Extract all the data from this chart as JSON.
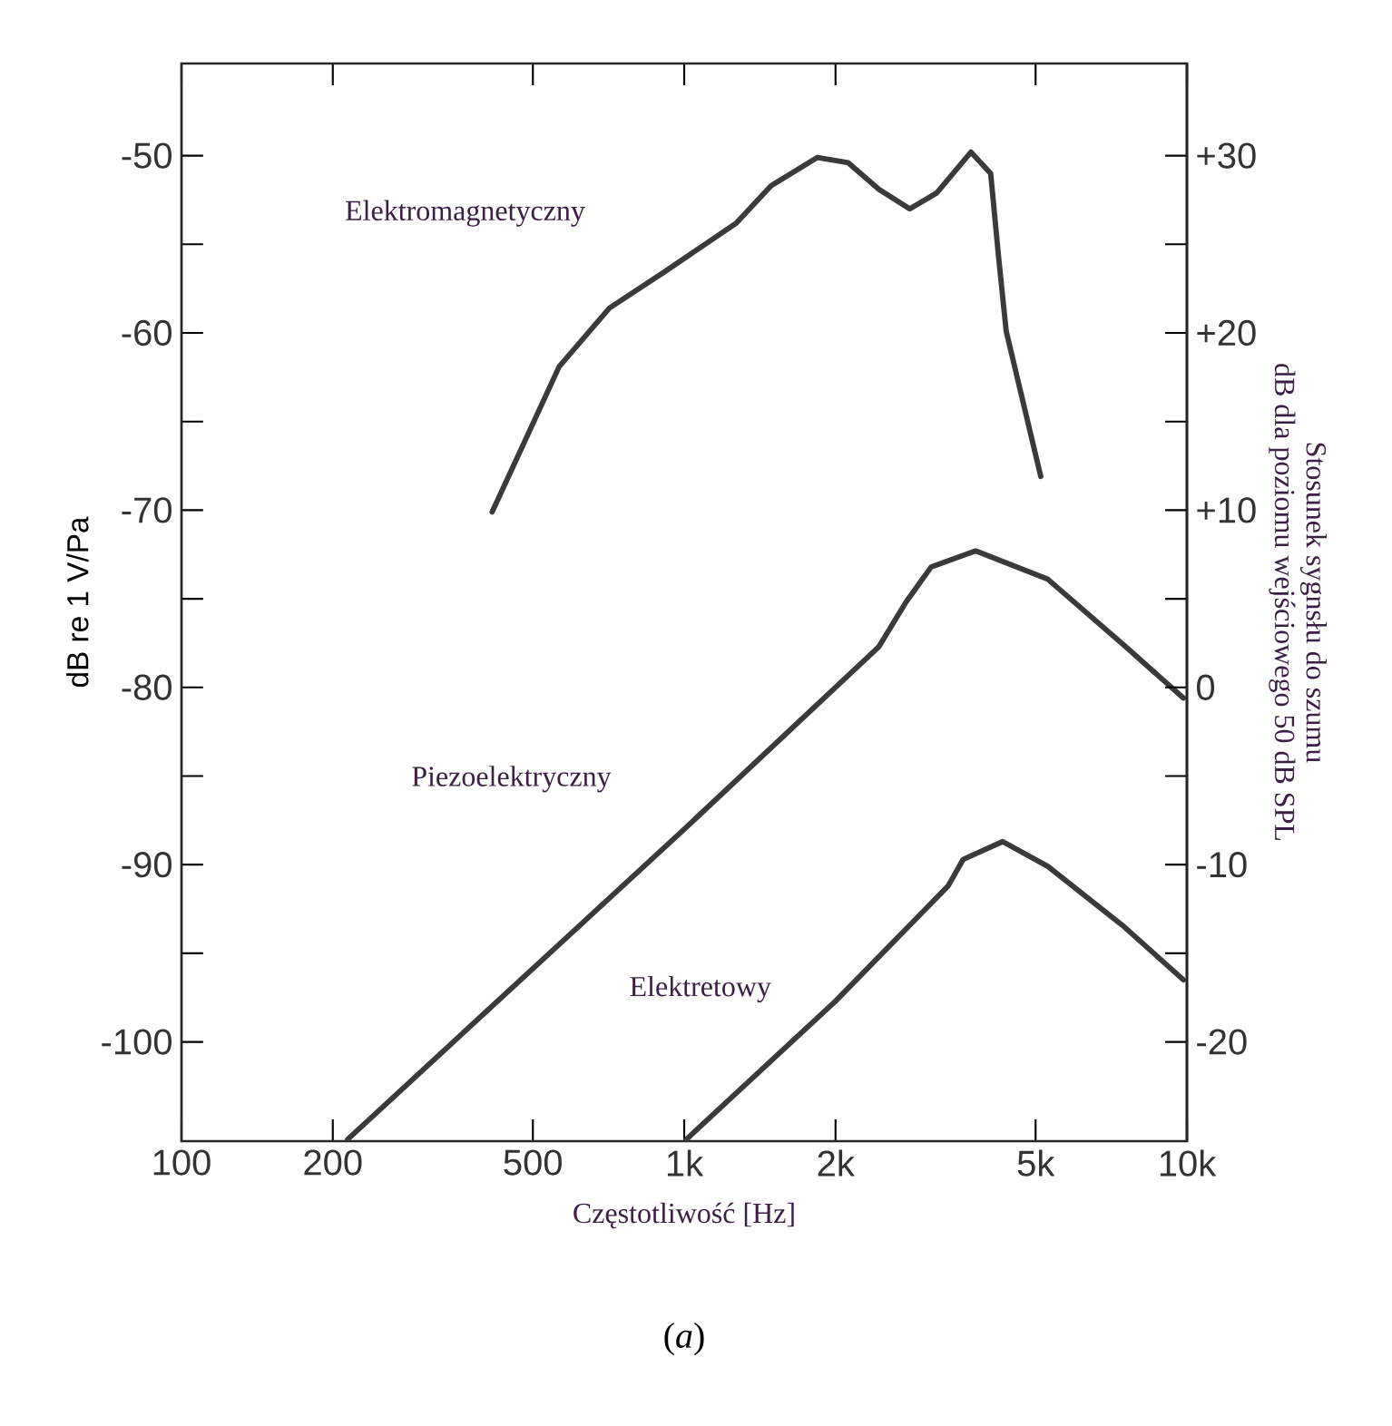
{
  "chart_data": {
    "type": "line",
    "xlabel": "Częstotliwość [Hz]",
    "ylabel": "dB re 1 V/Pa",
    "y2label": "Stosunek sygnsłu do szumu\ndB dla poziomu wejściowego 50 dB SPL",
    "log": "x",
    "grid": false,
    "legend": false,
    "marker": "none",
    "line_style": "solid",
    "xlim": [
      100,
      10000
    ],
    "ylim": [
      -105.6,
      -44.8
    ],
    "y2lim": [
      -25.6,
      35.2
    ],
    "xticks": [
      100,
      200,
      500,
      {
        "value": 1000,
        "label": "1k"
      },
      {
        "value": 2000,
        "label": "2k"
      },
      {
        "value": 5000,
        "label": "5k"
      },
      {
        "value": 10000,
        "label": "10k"
      }
    ],
    "yticks": [
      -50,
      {
        "value": -55,
        "label": null
      },
      -60,
      {
        "value": -65,
        "label": null
      },
      -70,
      {
        "value": -75,
        "label": null
      },
      -80,
      {
        "value": -85,
        "label": null
      },
      -90,
      {
        "value": -95,
        "label": null
      },
      -100
    ],
    "y2ticks": [
      {
        "value": 30,
        "label": "+30"
      },
      {
        "value": 25,
        "label": null
      },
      {
        "value": 20,
        "label": "+20"
      },
      {
        "value": 15,
        "label": null
      },
      {
        "value": 10,
        "label": "+10"
      },
      {
        "value": 5,
        "label": null
      },
      0,
      {
        "value": -5,
        "label": null
      },
      -10,
      {
        "value": -15,
        "label": null
      },
      -20
    ],
    "series": [
      {
        "name": "Elektromagnetyczny",
        "color": "#3a3a3a",
        "x": [
          415,
          564,
          710,
          909,
          1270,
          1489,
          1841,
          2120,
          2440,
          2810,
          3180,
          3720,
          4070,
          4220,
          4370,
          5120
        ],
        "values": [
          -70.1,
          -61.9,
          -58.6,
          -56.6,
          -53.8,
          -51.7,
          -50.1,
          -50.4,
          -51.9,
          -53.0,
          -52.1,
          -49.8,
          -51.0,
          -55.7,
          -59.9,
          -68.1
        ]
      },
      {
        "name": "Piezoelektryczny",
        "color": "#3a3a3a",
        "x": [
          214,
          1000,
          2440,
          2760,
          3100,
          3800,
          5290,
          7550,
          9840
        ],
        "values": [
          -105.5,
          -88.0,
          -77.7,
          -75.2,
          -73.2,
          -72.3,
          -73.9,
          -77.7,
          -80.6
        ]
      },
      {
        "name": "Elektretowy",
        "color": "#3a3a3a",
        "x": [
          1010,
          2000,
          3350,
          3590,
          4300,
          5290,
          7500,
          9840
        ],
        "values": [
          -105.5,
          -97.7,
          -91.2,
          -89.7,
          -88.7,
          -90.1,
          -93.5,
          -96.5
        ]
      }
    ],
    "annotations": [
      "(*a*)"
    ]
  }
}
